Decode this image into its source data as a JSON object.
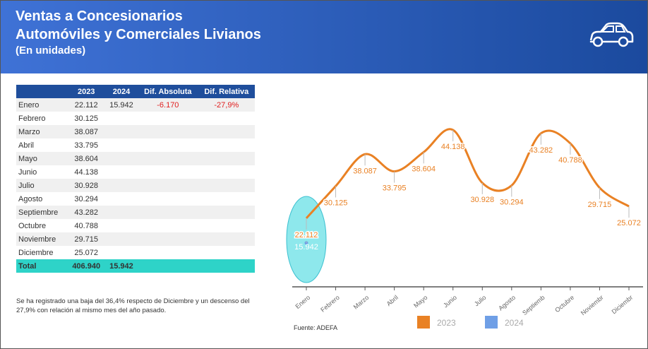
{
  "header": {
    "title": [
      "Ventas a Concesionarios",
      "Automóviles y Comerciales Livianos"
    ],
    "subtitle": "(En unidades)"
  },
  "table": {
    "columns": [
      "2023",
      "2024",
      "Dif. Absoluta",
      "Dif. Relativa"
    ],
    "rows": [
      [
        "Enero",
        "22.112",
        "15.942",
        "-6.170",
        "-27,9%"
      ],
      [
        "Febrero",
        "30.125"
      ],
      [
        "Marzo",
        "38.087"
      ],
      [
        "Abril",
        "33.795"
      ],
      [
        "Mayo",
        "38.604"
      ],
      [
        "Junio",
        "44.138"
      ],
      [
        "Julio",
        "30.928"
      ],
      [
        "Agosto",
        "30.294"
      ],
      [
        "Septiembre",
        "43.282"
      ],
      [
        "Octubre",
        "40.788"
      ],
      [
        "Noviembre",
        "29.715"
      ],
      [
        "Diciembre",
        "25.072"
      ]
    ],
    "total": [
      "Total",
      "406.940",
      "15.942"
    ]
  },
  "note": "Se ha registrado una baja del 36,4% respecto de Diciembre y un descenso del 27,9% con relación al mismo mes del año pasado.",
  "source": "Fuente: ADEFA",
  "chart_data": {
    "type": "line",
    "categories": [
      "Enero",
      "Febrero",
      "Marzo",
      "Abril",
      "Mayo",
      "Junio",
      "Julio",
      "Agosto",
      "Septiemb",
      "Octubre",
      "Noviembr",
      "Diciembr"
    ],
    "series": [
      {
        "name": "2023",
        "color": "#e98124",
        "values": [
          22112,
          30125,
          38087,
          33795,
          38604,
          44138,
          30928,
          30294,
          43282,
          40788,
          29715,
          25072
        ],
        "value_labels": [
          "22.112",
          "30.125",
          "38.087",
          "33.795",
          "38.604",
          "44.138",
          "30.928",
          "30.294",
          "43.282",
          "40.788",
          "29.715",
          "25.072"
        ]
      },
      {
        "name": "2024",
        "color": "#6f9fe6",
        "values": [
          15942,
          null,
          null,
          null,
          null,
          null,
          null,
          null,
          null,
          null,
          null,
          null
        ],
        "value_labels": [
          "15.942",
          null,
          null,
          null,
          null,
          null,
          null,
          null,
          null,
          null,
          null,
          null
        ]
      }
    ],
    "ylim": [
      5000,
      48000
    ]
  }
}
